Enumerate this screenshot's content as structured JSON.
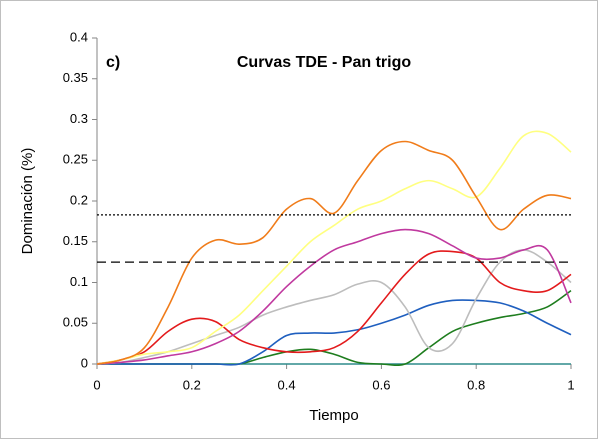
{
  "chart_data": {
    "type": "line",
    "panel_label": "c)",
    "title": "Curvas TDE - Pan trigo",
    "xlabel": "Tiempo",
    "ylabel": "Dominación (%)",
    "x": [
      0,
      0.05,
      0.1,
      0.15,
      0.2,
      0.25,
      0.3,
      0.35,
      0.4,
      0.45,
      0.5,
      0.55,
      0.6,
      0.65,
      0.7,
      0.75,
      0.8,
      0.85,
      0.9,
      0.95,
      1
    ],
    "series": [
      {
        "color": "#2e8b8b",
        "values": [
          0,
          0,
          0,
          0,
          0,
          0,
          0,
          0,
          0,
          0,
          0,
          0,
          0,
          0,
          0,
          0,
          0,
          0,
          0,
          0,
          0
        ]
      },
      {
        "color": "#1e7d1e",
        "values": [
          0,
          0,
          0,
          0,
          0,
          0,
          0,
          0.008,
          0.015,
          0.018,
          0.012,
          0.002,
          0,
          0,
          0.02,
          0.04,
          0.05,
          0.057,
          0.062,
          0.07,
          0.09
        ]
      },
      {
        "color": "#1f5fbf",
        "values": [
          0,
          0,
          0,
          0,
          0,
          0,
          0,
          0.015,
          0.035,
          0.038,
          0.038,
          0.042,
          0.05,
          0.06,
          0.072,
          0.078,
          0.078,
          0.075,
          0.065,
          0.05,
          0.036
        ]
      },
      {
        "color": "#bdbdbd",
        "values": [
          0,
          0.002,
          0.008,
          0.015,
          0.025,
          0.035,
          0.045,
          0.06,
          0.07,
          0.078,
          0.085,
          0.098,
          0.1,
          0.07,
          0.02,
          0.025,
          0.08,
          0.125,
          0.14,
          0.125,
          0.1
        ]
      },
      {
        "color": "#e31a1c",
        "values": [
          0,
          0.005,
          0.015,
          0.04,
          0.055,
          0.052,
          0.03,
          0.02,
          0.015,
          0.015,
          0.02,
          0.04,
          0.075,
          0.11,
          0.135,
          0.138,
          0.13,
          0.1,
          0.09,
          0.09,
          0.11
        ]
      },
      {
        "color": "#c0399f",
        "values": [
          0,
          0.002,
          0.005,
          0.01,
          0.015,
          0.025,
          0.04,
          0.065,
          0.095,
          0.12,
          0.14,
          0.15,
          0.16,
          0.165,
          0.16,
          0.145,
          0.13,
          0.13,
          0.14,
          0.14,
          0.075
        ]
      },
      {
        "color": "#ffff80",
        "values": [
          0,
          0.005,
          0.012,
          0.015,
          0.02,
          0.04,
          0.06,
          0.09,
          0.12,
          0.15,
          0.17,
          0.19,
          0.2,
          0.215,
          0.225,
          0.215,
          0.205,
          0.24,
          0.28,
          0.283,
          0.26
        ]
      },
      {
        "color": "#f07c1a",
        "values": [
          0,
          0.005,
          0.02,
          0.07,
          0.13,
          0.152,
          0.147,
          0.155,
          0.19,
          0.203,
          0.185,
          0.225,
          0.262,
          0.273,
          0.262,
          0.25,
          0.205,
          0.165,
          0.19,
          0.207,
          0.203
        ]
      }
    ],
    "reference_lines": [
      {
        "value": 0.183,
        "style": "dotted"
      },
      {
        "value": 0.125,
        "style": "dashed"
      }
    ],
    "xlim": [
      0,
      1
    ],
    "xticks": [
      0,
      0.2,
      0.4,
      0.6,
      0.8,
      1
    ],
    "ylim": [
      0,
      0.4
    ],
    "yticks": [
      0,
      0.05,
      0.1,
      0.15,
      0.2,
      0.25,
      0.3,
      0.35,
      0.4
    ],
    "grid": false
  }
}
